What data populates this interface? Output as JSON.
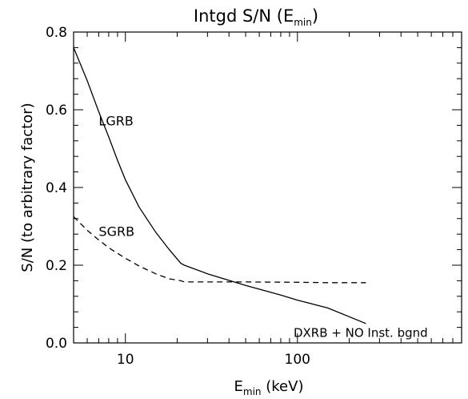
{
  "chart_data": {
    "type": "line",
    "title": {
      "main": "Intgd S/N (E",
      "sub": "min",
      "close": ")"
    },
    "xlabel": {
      "main": "E",
      "sub": "min",
      "rest": " (keV)"
    },
    "ylabel": "S/N (to arbitrary factor)",
    "x_scale": "log",
    "xlim": [
      5,
      900
    ],
    "ylim": [
      0,
      0.8
    ],
    "x_ticks": [
      {
        "value": 10,
        "label": "10"
      },
      {
        "value": 100,
        "label": "100"
      }
    ],
    "y_ticks": [
      {
        "value": 0.0,
        "label": "0.0"
      },
      {
        "value": 0.2,
        "label": "0.2"
      },
      {
        "value": 0.4,
        "label": "0.4"
      },
      {
        "value": 0.6,
        "label": "0.6"
      },
      {
        "value": 0.8,
        "label": "0.8"
      }
    ],
    "grid": false,
    "series": [
      {
        "name": "LGRB",
        "style": "solid",
        "x": [
          5,
          6,
          7,
          8,
          9,
          10,
          12,
          15,
          18,
          21,
          22,
          30,
          50,
          80,
          100,
          150,
          250
        ],
        "y": [
          0.76,
          0.675,
          0.595,
          0.53,
          0.47,
          0.42,
          0.35,
          0.285,
          0.24,
          0.205,
          0.2,
          0.178,
          0.148,
          0.123,
          0.11,
          0.09,
          0.05
        ]
      },
      {
        "name": "SGRB",
        "style": "dashed",
        "x": [
          5,
          6,
          7,
          8,
          10,
          12,
          15,
          18,
          21,
          22,
          30,
          50,
          100,
          150,
          250
        ],
        "y": [
          0.325,
          0.29,
          0.265,
          0.245,
          0.218,
          0.198,
          0.178,
          0.165,
          0.16,
          0.157,
          0.157,
          0.157,
          0.156,
          0.155,
          0.155
        ]
      }
    ],
    "annotations": [
      {
        "text": "LGRB",
        "x": 7,
        "y": 0.56
      },
      {
        "text": "SGRB",
        "x": 7,
        "y": 0.275
      },
      {
        "text": "DXRB + NO Inst. bgnd",
        "x": 95,
        "y": 0.015
      }
    ]
  }
}
